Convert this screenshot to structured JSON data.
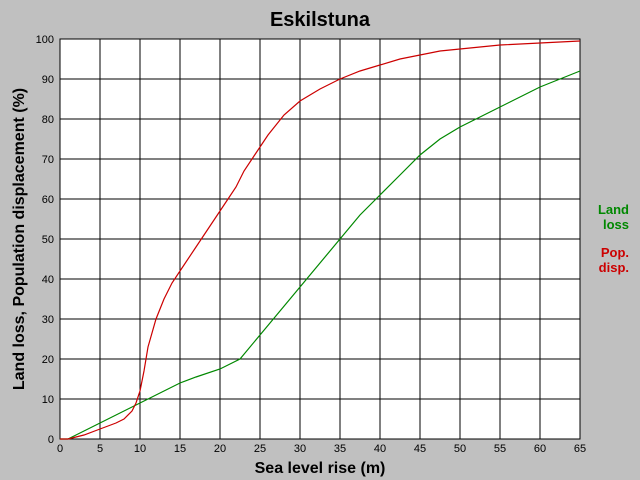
{
  "chart_data": {
    "type": "line",
    "title": "Eskilstuna",
    "xlabel": "Sea level rise (m)",
    "ylabel": "Land loss, Population displacement (%)",
    "xlim": [
      0,
      65
    ],
    "ylim": [
      0,
      100
    ],
    "x_ticks": [
      0,
      5,
      10,
      15,
      20,
      25,
      30,
      35,
      40,
      45,
      50,
      55,
      60,
      65
    ],
    "y_ticks": [
      0,
      10,
      20,
      30,
      40,
      50,
      60,
      70,
      80,
      90,
      100
    ],
    "grid": true,
    "legend_position": "right",
    "series": [
      {
        "name_lines": [
          "Land",
          "loss"
        ],
        "color": "#008800",
        "points": [
          [
            0,
            0
          ],
          [
            1,
            0
          ],
          [
            2,
            1
          ],
          [
            3,
            2
          ],
          [
            4,
            3
          ],
          [
            5,
            4
          ],
          [
            7,
            6
          ],
          [
            9,
            8
          ],
          [
            11,
            10
          ],
          [
            13,
            12
          ],
          [
            15,
            14
          ],
          [
            17,
            15.5
          ],
          [
            20,
            17.5
          ],
          [
            22.5,
            20
          ],
          [
            25,
            26
          ],
          [
            27.5,
            32
          ],
          [
            30,
            38
          ],
          [
            32.5,
            44
          ],
          [
            35,
            50
          ],
          [
            37.5,
            56
          ],
          [
            40,
            61
          ],
          [
            42.5,
            66
          ],
          [
            45,
            71
          ],
          [
            47.5,
            75
          ],
          [
            50,
            78
          ],
          [
            52.5,
            80.5
          ],
          [
            55,
            83
          ],
          [
            57.5,
            85.5
          ],
          [
            60,
            88
          ],
          [
            62.5,
            90
          ],
          [
            65,
            92
          ]
        ]
      },
      {
        "name_lines": [
          "Pop.",
          "disp."
        ],
        "color": "#cc0000",
        "points": [
          [
            0,
            0
          ],
          [
            1,
            0
          ],
          [
            2,
            0.5
          ],
          [
            3,
            1
          ],
          [
            5,
            2.5
          ],
          [
            7,
            4
          ],
          [
            8,
            5
          ],
          [
            9,
            7
          ],
          [
            9.5,
            9
          ],
          [
            10,
            12
          ],
          [
            10.5,
            17
          ],
          [
            11,
            23
          ],
          [
            12,
            30
          ],
          [
            13,
            35
          ],
          [
            14,
            39
          ],
          [
            15,
            42
          ],
          [
            17,
            48
          ],
          [
            18,
            51
          ],
          [
            20,
            57
          ],
          [
            21,
            60
          ],
          [
            22,
            63
          ],
          [
            23,
            67
          ],
          [
            25,
            73
          ],
          [
            26,
            76
          ],
          [
            28,
            81
          ],
          [
            30,
            84.5
          ],
          [
            32.5,
            87.5
          ],
          [
            35,
            90
          ],
          [
            37.5,
            92
          ],
          [
            40,
            93.5
          ],
          [
            42.5,
            95
          ],
          [
            45,
            96
          ],
          [
            47.5,
            97
          ],
          [
            50,
            97.5
          ],
          [
            55,
            98.5
          ],
          [
            60,
            99
          ],
          [
            65,
            99.5
          ]
        ]
      }
    ]
  }
}
